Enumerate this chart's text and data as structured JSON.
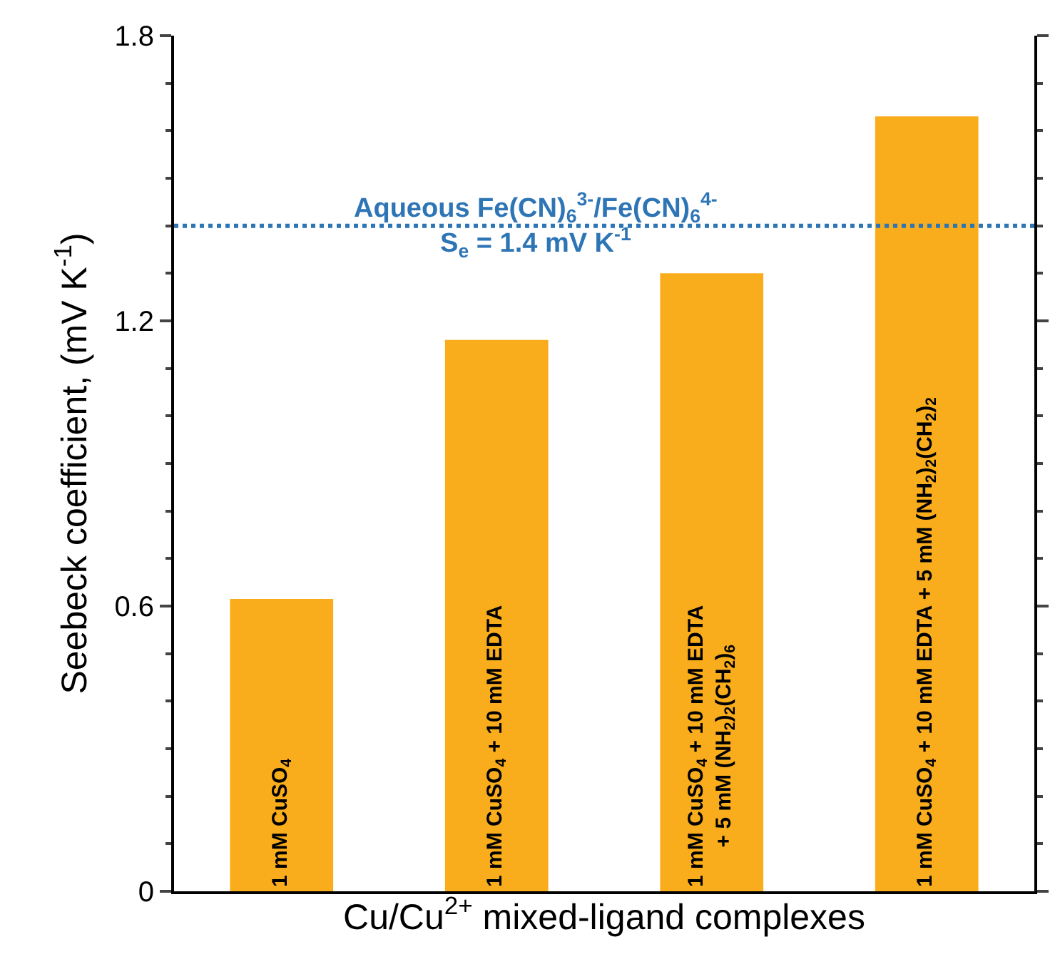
{
  "chart_data": {
    "type": "bar",
    "xlabel": "Cu/Cu$^{2+}$ mixed-ligand complexes",
    "ylabel": "Seebeck coefficient, (mV K$^{-1}$)",
    "categories": [
      "1 mM CuSO$_{4}$",
      "1 mM CuSO$_{4}$ + 10 mM EDTA",
      "1 mM CuSO$_{4}$ + 10 mM EDTA\n+ 5 mM (NH$_{2}$)$_{2}$(CH$_{2}$)$_{6}$",
      "1 mM CuSO$_{4}$ + 10 mM EDTA + 5 mM (NH$_{2}$)$_{2}$(CH$_{2}$)$_{2}$"
    ],
    "values": [
      0.615,
      1.16,
      1.3,
      1.63
    ],
    "color": "#f9ad1c",
    "ylim": [
      0,
      1.8
    ],
    "yticks": [
      0,
      0.6,
      1.2,
      1.8
    ],
    "tick_labels": "y",
    "ref_lines": [
      {
        "axis": "y",
        "value": 1.4,
        "label": "Aqueous Fe(CN)$_{6}$$^{3-}$/Fe(CN)$_{6}$$^{4-}$\nS$_{e}$ = 1.4 mV K$^{-1}$",
        "color": "#2e75b6",
        "line_style": "dotted"
      }
    ]
  }
}
